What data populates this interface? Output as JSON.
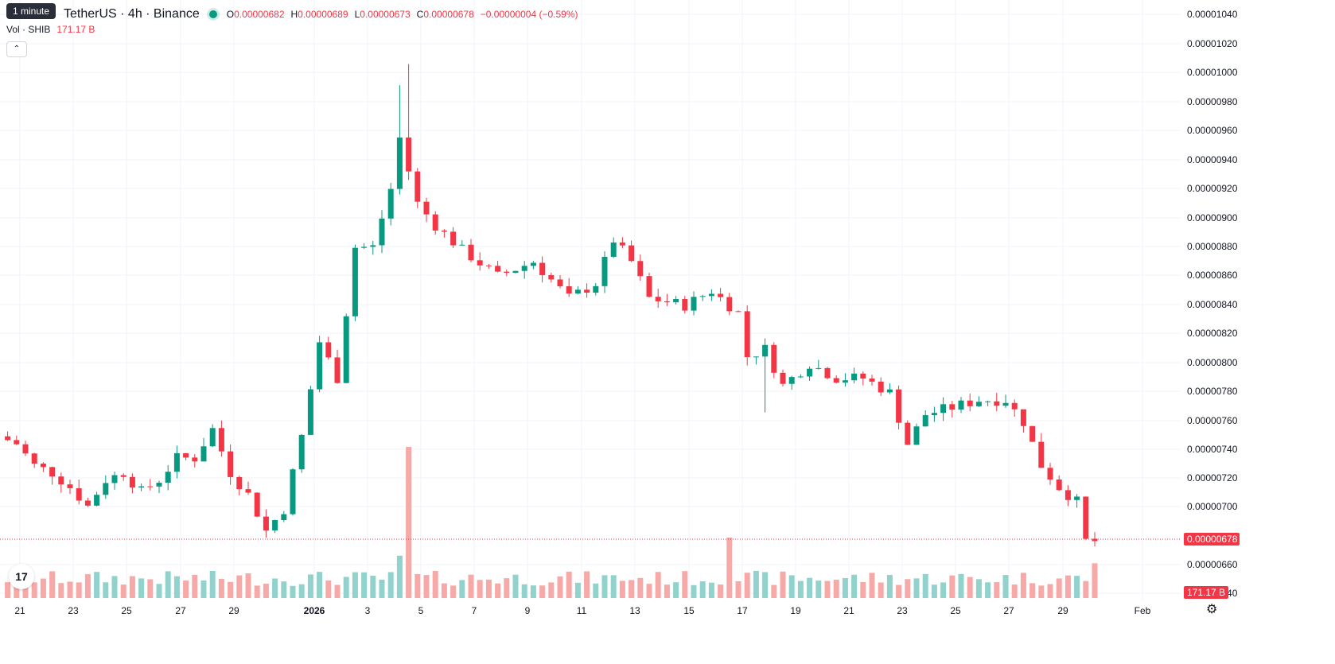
{
  "legend": {
    "tooltip": "1 minute",
    "symbol": "TetherUS · 4h · Binance",
    "open_label": "O",
    "open": "0.00000682",
    "high_label": "H",
    "high": "0.00000689",
    "low_label": "L",
    "low": "0.00000673",
    "close_label": "C",
    "close": "0.00000678",
    "change": "−0.00000004 (−0.59%)"
  },
  "volume": {
    "label": "Vol · SHIB",
    "value": "171.17 B"
  },
  "icons": {
    "collapse": "chevron-up-icon",
    "logo": "tradingview-logo",
    "settings": "gear-icon"
  },
  "colors": {
    "up": "#089981",
    "down": "#f23645",
    "up_vol": "#92d2cc",
    "down_vol": "#f7a9a7",
    "grid": "#f0f3fa"
  },
  "chart_data": {
    "type": "candlestick",
    "price_axis_ticks": [
      "0.00001040",
      "0.00001020",
      "0.00001000",
      "0.00000980",
      "0.00000960",
      "0.00000940",
      "0.00000920",
      "0.00000900",
      "0.00000880",
      "0.00000860",
      "0.00000840",
      "0.00000820",
      "0.00000800",
      "0.00000780",
      "0.00000760",
      "0.00000740",
      "0.00000720",
      "0.00000700",
      "0.00000660",
      "0.00000640"
    ],
    "time_axis_ticks": [
      "21",
      "23",
      "25",
      "27",
      "29",
      "2026",
      "3",
      "5",
      "7",
      "9",
      "11",
      "13",
      "15",
      "17",
      "19",
      "21",
      "23",
      "25",
      "27",
      "29",
      "Feb"
    ],
    "last_price_label": "0.00000678",
    "last_volume_label": "171.17 B",
    "ylim": [
      6.3e-06,
      1.05e-05
    ],
    "series_keypoints": [
      {
        "t": 0,
        "p": 7.5
      },
      {
        "t": 2,
        "p": 7.45
      },
      {
        "t": 4,
        "p": 7.3
      },
      {
        "t": 6,
        "p": 7.25
      },
      {
        "t": 8,
        "p": 7.15
      },
      {
        "t": 10,
        "p": 7.02
      },
      {
        "t": 12,
        "p": 7.2
      },
      {
        "t": 14,
        "p": 7.25
      },
      {
        "t": 16,
        "p": 7.12
      },
      {
        "t": 18,
        "p": 7.2
      },
      {
        "t": 20,
        "p": 7.35
      },
      {
        "t": 22,
        "p": 7.35
      },
      {
        "t": 24,
        "p": 7.55
      },
      {
        "t": 26,
        "p": 7.25
      },
      {
        "t": 28,
        "p": 7.1
      },
      {
        "t": 30,
        "p": 6.85
      },
      {
        "t": 32,
        "p": 7.0
      },
      {
        "t": 34,
        "p": 7.5
      },
      {
        "t": 36,
        "p": 8.15
      },
      {
        "t": 38,
        "p": 7.9
      },
      {
        "t": 40,
        "p": 8.8
      },
      {
        "t": 42,
        "p": 8.8
      },
      {
        "t": 44,
        "p": 9.2
      },
      {
        "t": 45,
        "p": 9.55
      },
      {
        "t": 47,
        "p": 9.1
      },
      {
        "t": 49,
        "p": 8.95
      },
      {
        "t": 52,
        "p": 8.78
      },
      {
        "t": 56,
        "p": 8.6
      },
      {
        "t": 60,
        "p": 8.7
      },
      {
        "t": 64,
        "p": 8.45
      },
      {
        "t": 67,
        "p": 8.55
      },
      {
        "t": 69,
        "p": 8.85
      },
      {
        "t": 71,
        "p": 8.7
      },
      {
        "t": 73,
        "p": 8.45
      },
      {
        "t": 77,
        "p": 8.4
      },
      {
        "t": 80,
        "p": 8.5
      },
      {
        "t": 83,
        "p": 8.35
      },
      {
        "t": 84,
        "p": 8.05
      },
      {
        "t": 86,
        "p": 8.1
      },
      {
        "t": 88,
        "p": 7.85
      },
      {
        "t": 91,
        "p": 8.0
      },
      {
        "t": 94,
        "p": 7.9
      },
      {
        "t": 97,
        "p": 7.9
      },
      {
        "t": 100,
        "p": 7.8
      },
      {
        "t": 102,
        "p": 7.45
      },
      {
        "t": 104,
        "p": 7.65
      },
      {
        "t": 107,
        "p": 7.7
      },
      {
        "t": 110,
        "p": 7.75
      },
      {
        "t": 113,
        "p": 7.75
      },
      {
        "t": 115,
        "p": 7.6
      },
      {
        "t": 117,
        "p": 7.3
      },
      {
        "t": 119,
        "p": 7.15
      },
      {
        "t": 121,
        "p": 7.05
      },
      {
        "t": 122,
        "p": 6.78
      }
    ],
    "volume_spikes": [
      {
        "t": 44,
        "v": 0.28
      },
      {
        "t": 45,
        "v": 1.0
      },
      {
        "t": 81,
        "v": 0.4
      },
      {
        "t": 122,
        "v": 0.23
      }
    ]
  }
}
